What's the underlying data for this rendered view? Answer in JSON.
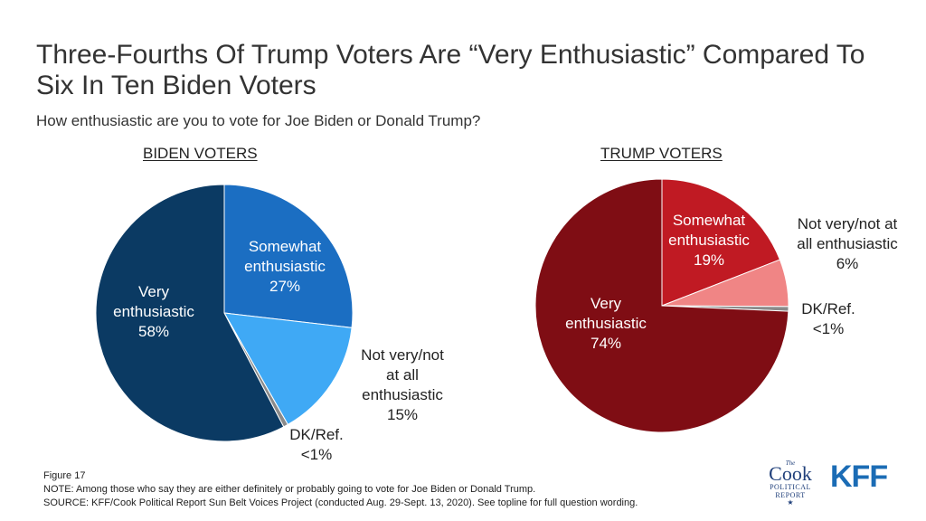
{
  "title": "Three-Fourths Of Trump Voters Are “Very Enthusiastic” Compared To Six In Ten Biden Voters",
  "subtitle": "How enthusiastic are you to vote for Joe Biden or Donald Trump?",
  "chart_data": [
    {
      "type": "pie",
      "title": "BIDEN VOTERS",
      "slices": [
        {
          "label": "Somewhat enthusiastic",
          "value": 27,
          "display": "27%",
          "color": "#1b6ec2",
          "label_color": "#ffffff"
        },
        {
          "label": "Not very/not at all enthusiastic",
          "value": 15,
          "display": "15%",
          "color": "#3fa9f5",
          "label_color": "#222222"
        },
        {
          "label": "DK/Ref.",
          "value": 0.6,
          "display": "<1%",
          "color": "#8a8a8a",
          "label_color": "#222222"
        },
        {
          "label": "Very enthusiastic",
          "value": 58,
          "display": "58%",
          "color": "#0b3a63",
          "label_color": "#ffffff"
        }
      ]
    },
    {
      "type": "pie",
      "title": "TRUMP VOTERS",
      "slices": [
        {
          "label": "Somewhat enthusiastic",
          "value": 19,
          "display": "19%",
          "color": "#c01a23",
          "label_color": "#ffffff"
        },
        {
          "label": "Not very/not at all enthusiastic",
          "value": 6,
          "display": "6%",
          "color": "#f08585",
          "label_color": "#222222"
        },
        {
          "label": "DK/Ref.",
          "value": 0.6,
          "display": "<1%",
          "color": "#8a8a8a",
          "label_color": "#222222"
        },
        {
          "label": "Very enthusiastic",
          "value": 74,
          "display": "74%",
          "color": "#7f0d14",
          "label_color": "#ffffff"
        }
      ]
    }
  ],
  "labels": {
    "biden": [
      {
        "lines": [
          "Somewhat",
          "enthusiastic",
          "27%"
        ]
      },
      {
        "lines": [
          "Not very/not",
          "at all",
          "enthusiastic",
          "15%"
        ]
      },
      {
        "lines": [
          "DK/Ref.",
          "<1%"
        ]
      },
      {
        "lines": [
          "Very",
          "enthusiastic",
          "58%"
        ]
      }
    ],
    "trump": [
      {
        "lines": [
          "Somewhat",
          "enthusiastic",
          "19%"
        ]
      },
      {
        "lines": [
          "Not very/not at",
          "all enthusiastic",
          "6%"
        ]
      },
      {
        "lines": [
          "DK/Ref.",
          "<1%"
        ]
      },
      {
        "lines": [
          "Very",
          "enthusiastic",
          "74%"
        ]
      }
    ]
  },
  "footer": {
    "figure": "Figure 17",
    "note": "NOTE: Among those who say they are either definitely or probably going to vote for Joe Biden or Donald Trump.",
    "source": "SOURCE: KFF/Cook Political Report Sun Belt Voices Project (conducted Aug. 29-Sept. 13, 2020). See topline for full question wording."
  },
  "logos": {
    "cook_the": "The",
    "cook_main": "Cook",
    "cook_political": "POLITICAL",
    "cook_report": "REPORT",
    "kff": "KFF"
  }
}
